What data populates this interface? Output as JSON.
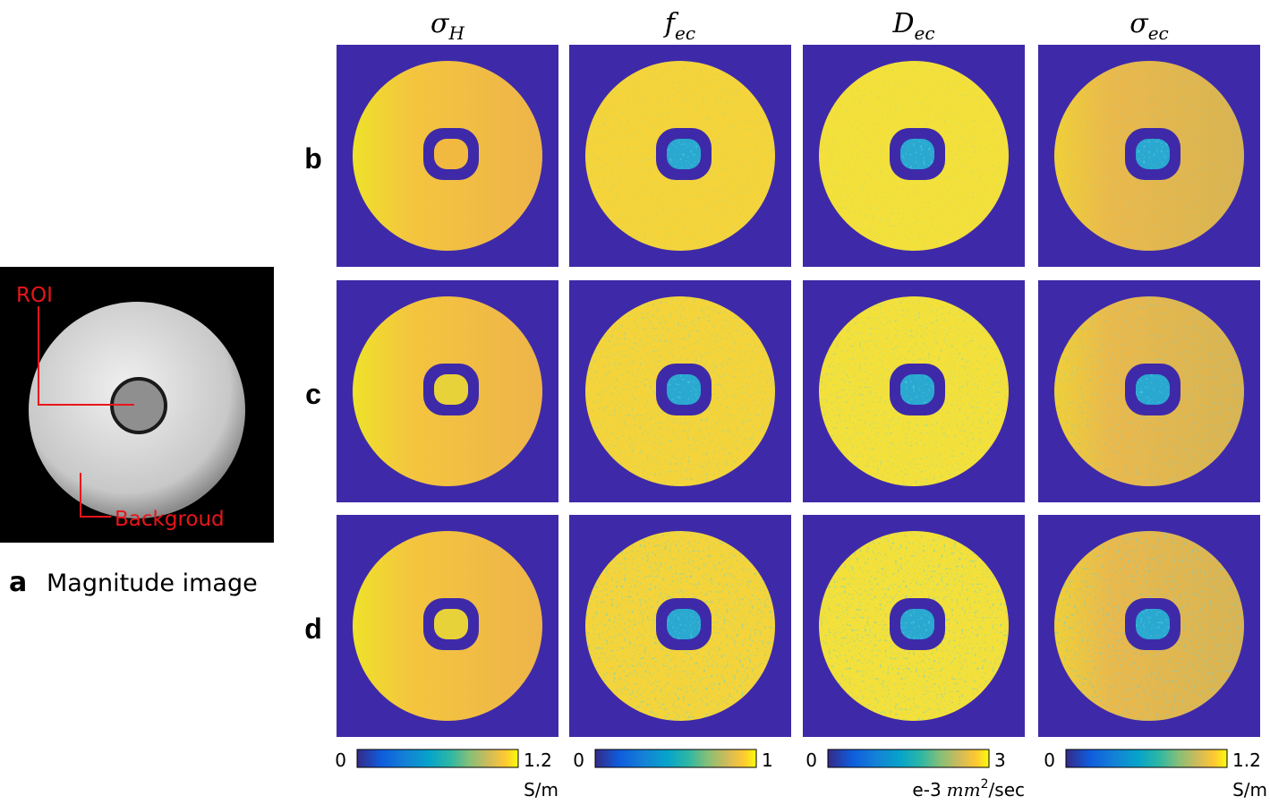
{
  "columns": [
    {
      "symbol": "σ",
      "subscript": "H"
    },
    {
      "symbol": "f",
      "subscript": "ec"
    },
    {
      "symbol": "D",
      "subscript": "ec"
    },
    {
      "symbol": "σ",
      "subscript": "ec"
    }
  ],
  "rows": [
    "b",
    "c",
    "d"
  ],
  "magnitude": {
    "letter": "a",
    "caption": "Magnitude image",
    "roi": "ROI",
    "background": "Backgroud"
  },
  "colorbars": [
    {
      "min": 0,
      "max": 1.2,
      "unit": "S/m"
    },
    {
      "min": 0,
      "max": 1
    },
    {
      "min": 0,
      "max": 3,
      "unit_prefix": "e-3",
      "unit_base": "mm",
      "unit_exp": "2",
      "unit_suffix": "/sec"
    },
    {
      "min": 0,
      "max": 1.2,
      "unit": "S/m"
    }
  ]
}
